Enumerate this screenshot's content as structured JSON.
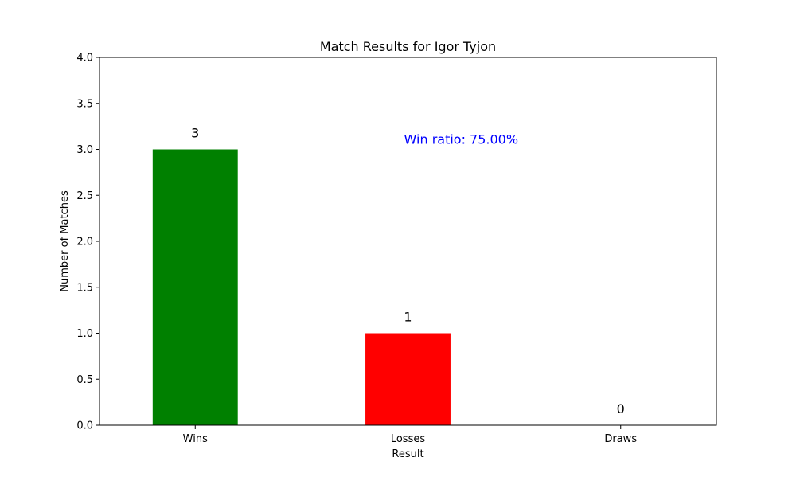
{
  "chart_data": {
    "type": "bar",
    "title": "Match Results for Igor Tyjon",
    "xlabel": "Result",
    "ylabel": "Number of Matches",
    "categories": [
      "Wins",
      "Losses",
      "Draws"
    ],
    "values": [
      3,
      1,
      0
    ],
    "value_labels": [
      "3",
      "1",
      "0"
    ],
    "colors": [
      "#008000",
      "#ff0000",
      "#0000ff"
    ],
    "ylim": [
      0,
      4
    ],
    "yticks": [
      "0.0",
      "0.5",
      "1.0",
      "1.5",
      "2.0",
      "2.5",
      "3.0",
      "3.5",
      "4.0"
    ],
    "ytick_values": [
      0,
      0.5,
      1,
      1.5,
      2,
      2.5,
      3,
      3.5,
      4
    ],
    "grid": false,
    "legend": "none",
    "annotation": {
      "text": "Win ratio: 75.00%",
      "x_category_pos": 1.25,
      "y_value": 3.05,
      "color": "#0000ff"
    }
  }
}
